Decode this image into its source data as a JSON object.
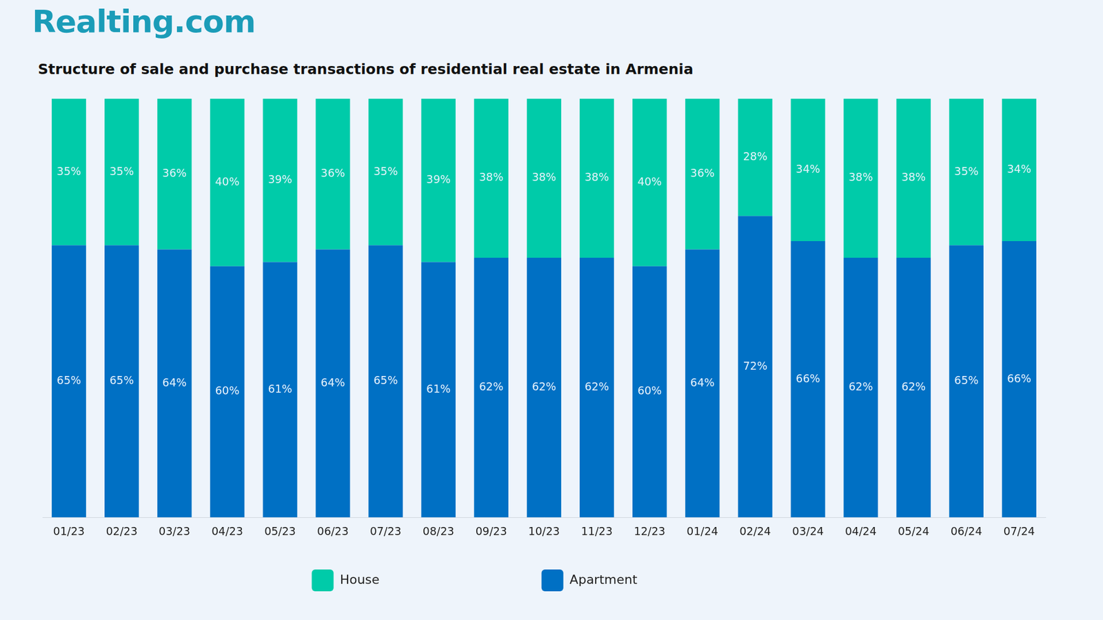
{
  "logo": "Realting.com",
  "chart_data": {
    "type": "bar",
    "title": "Structure of sale and purchase transactions of residential real estate in Armenia",
    "categories": [
      "01/23",
      "02/23",
      "03/23",
      "04/23",
      "05/23",
      "06/23",
      "07/23",
      "08/23",
      "09/23",
      "10/23",
      "11/23",
      "12/23",
      "01/24",
      "02/24",
      "03/24",
      "04/24",
      "05/24",
      "06/24",
      "07/24"
    ],
    "series": [
      {
        "name": "House",
        "color": "#00cba9",
        "values": [
          35,
          35,
          36,
          40,
          39,
          36,
          35,
          39,
          38,
          38,
          38,
          40,
          36,
          28,
          34,
          38,
          38,
          35,
          34
        ],
        "value_labels": [
          "35%",
          "35%",
          "36%",
          "40%",
          "39%",
          "36%",
          "35%",
          "39%",
          "38%",
          "38%",
          "38%",
          "40%",
          "36%",
          "28%",
          "34%",
          "38%",
          "38%",
          "35%",
          "34%"
        ]
      },
      {
        "name": "Apartment",
        "color": "#0070c4",
        "values": [
          65,
          65,
          64,
          60,
          61,
          64,
          65,
          61,
          62,
          62,
          62,
          60,
          64,
          72,
          66,
          62,
          62,
          65,
          66
        ],
        "value_labels": [
          "65%",
          "65%",
          "64%",
          "60%",
          "61%",
          "64%",
          "65%",
          "61%",
          "62%",
          "62%",
          "62%",
          "60%",
          "64%",
          "72%",
          "66%",
          "62%",
          "62%",
          "65%",
          "66%"
        ]
      }
    ],
    "ylim": [
      0,
      100
    ],
    "stacked": true,
    "data_labels": true,
    "grid": false,
    "legend": "bottom",
    "tick_labels": "x"
  }
}
